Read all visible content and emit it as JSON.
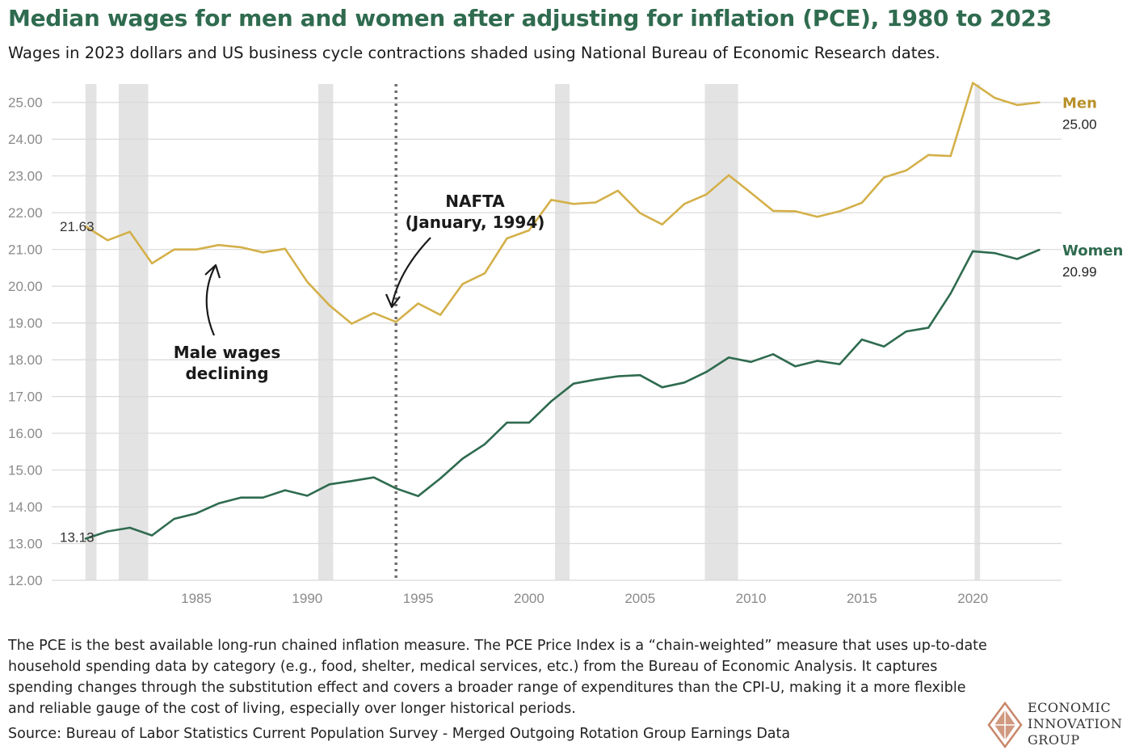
{
  "title": "Median wages for men and women after adjusting for inflation (PCE), 1980 to 2023",
  "subtitle": "Wages in 2023 dollars and US business cycle contractions shaded using National Bureau of Economic Research dates.",
  "note": "The PCE is the best available long-run chained inflation measure. The PCE Price Index is a “chain-weighted” measure that uses up-to-date household spending data by category (e.g., food, shelter, medical services, etc.) from the Bureau of Economic Analysis. It captures spending changes through the substitution effect and covers a broader range of expenditures than the CPI-U, making it a more flexible and reliable gauge of the cost of living, especially over longer historical periods.",
  "source": "Source: Bureau of Labor Statistics Current Population Survey - Merged Outgoing Rotation Group Earnings Data",
  "logo": {
    "line1": "ECONOMIC",
    "line2": "INNOVATION",
    "line3": "GROUP"
  },
  "colors": {
    "men": "#d4b04a",
    "women": "#2f6b4f",
    "men_label": "#b8902a",
    "title": "#2f6b4f",
    "recession": "#e3e3e3",
    "grid": "#d9d9d9",
    "logo": "#c8876a"
  },
  "chart_data": {
    "type": "line",
    "x": [
      1980,
      1981,
      1982,
      1983,
      1984,
      1985,
      1986,
      1987,
      1988,
      1989,
      1990,
      1991,
      1992,
      1993,
      1994,
      1995,
      1996,
      1997,
      1998,
      1999,
      2000,
      2001,
      2002,
      2003,
      2004,
      2005,
      2006,
      2007,
      2008,
      2009,
      2010,
      2011,
      2012,
      2013,
      2014,
      2015,
      2016,
      2017,
      2018,
      2019,
      2020,
      2021,
      2022,
      2023
    ],
    "series": [
      {
        "name": "Men",
        "color": "#d4b04a",
        "values": [
          21.63,
          21.25,
          21.48,
          20.62,
          21.0,
          21.0,
          21.12,
          21.06,
          20.92,
          21.02,
          20.12,
          19.48,
          18.98,
          19.27,
          19.03,
          19.53,
          19.22,
          20.06,
          20.35,
          21.3,
          21.52,
          22.35,
          22.24,
          22.28,
          22.6,
          21.99,
          21.68,
          22.24,
          22.5,
          23.02,
          22.54,
          22.05,
          22.04,
          21.89,
          22.04,
          22.27,
          22.96,
          23.15,
          23.57,
          23.54,
          25.53,
          25.12,
          24.93,
          25.0
        ]
      },
      {
        "name": "Women",
        "color": "#2f6b4f",
        "values": [
          13.13,
          13.33,
          13.43,
          13.22,
          13.67,
          13.82,
          14.09,
          14.25,
          14.25,
          14.45,
          14.3,
          14.61,
          14.7,
          14.8,
          14.5,
          14.29,
          14.77,
          15.31,
          15.7,
          16.29,
          16.29,
          16.87,
          17.35,
          17.46,
          17.55,
          17.58,
          17.25,
          17.38,
          17.67,
          18.06,
          17.94,
          18.15,
          17.82,
          17.97,
          17.88,
          18.55,
          18.36,
          18.77,
          18.87,
          19.8,
          20.95,
          20.9,
          20.74,
          20.99
        ]
      }
    ],
    "y_ticks": [
      "12.00",
      "13.00",
      "14.00",
      "15.00",
      "16.00",
      "17.00",
      "18.00",
      "19.00",
      "20.00",
      "21.00",
      "22.00",
      "23.00",
      "24.00",
      "25.00"
    ],
    "ylim": [
      12,
      25.5
    ],
    "xlim": [
      1979.5,
      2024
    ],
    "x_ticks": [
      1985,
      1990,
      1995,
      2000,
      2005,
      2010,
      2015,
      2020
    ],
    "recessions": [
      [
        1980.0,
        1980.5
      ],
      [
        1981.5,
        1982.83
      ],
      [
        1990.5,
        1991.17
      ],
      [
        2001.17,
        2001.83
      ],
      [
        2007.92,
        2009.42
      ],
      [
        2020.08,
        2020.33
      ]
    ],
    "nafta_x": 1994,
    "end_labels": [
      {
        "name": "Men",
        "value": "25.00"
      },
      {
        "name": "Women",
        "value": "20.99"
      }
    ],
    "start_labels": {
      "men": "21.63",
      "women": "13.13"
    },
    "annotations": {
      "nafta_line1": "NAFTA",
      "nafta_line2": "(January, 1994)",
      "male_line1": "Male wages",
      "male_line2": "declining"
    },
    "grid": true
  }
}
